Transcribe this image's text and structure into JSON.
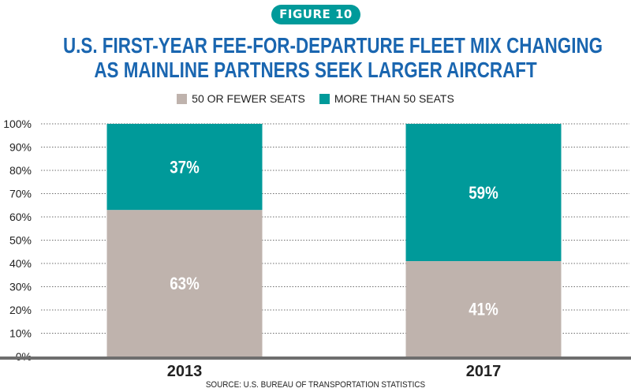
{
  "figure_label": "FIGURE 10",
  "title_line1": "U.S. FIRST-YEAR FEE-FOR-DEPARTURE FLEET MIX CHANGING",
  "title_line2": "AS MAINLINE PARTNERS SEEK LARGER AIRCRAFT",
  "source": "SOURCE: U.S. BUREAU OF TRANSPORTATION STATISTICS",
  "colors": {
    "accent": "#009a9a",
    "title": "#1a66b0",
    "small_seats": "#bfb3ad",
    "large_seats": "#009a9a",
    "gridline": "#6e6e6e",
    "baseline": "#6e6e6e"
  },
  "chart_data": {
    "type": "bar",
    "stacked": true,
    "categories": [
      "2013",
      "2017"
    ],
    "series": [
      {
        "name": "50 OR FEWER SEATS",
        "values": [
          63,
          41
        ],
        "labels": [
          "63%",
          "41%"
        ],
        "color": "#bfb3ad"
      },
      {
        "name": "MORE THAN 50 SEATS",
        "values": [
          37,
          59
        ],
        "labels": [
          "37%",
          "59%"
        ],
        "color": "#009a9a"
      }
    ],
    "ylim": [
      0,
      100
    ],
    "yticks": [
      "0%",
      "10%",
      "20%",
      "30%",
      "40%",
      "50%",
      "60%",
      "70%",
      "80%",
      "90%",
      "100%"
    ],
    "grid": true,
    "legend": "top-center"
  }
}
